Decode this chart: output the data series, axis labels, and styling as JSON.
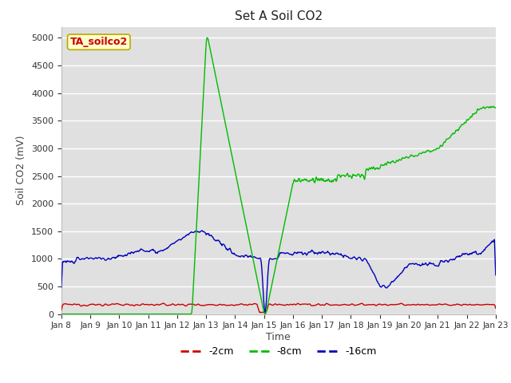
{
  "title": "Set A Soil CO2",
  "ylabel": "Soil CO2 (mV)",
  "xlabel": "Time",
  "annotation": "TA_soilco2",
  "ylim": [
    0,
    5200
  ],
  "yticks": [
    0,
    500,
    1000,
    1500,
    2000,
    2500,
    3000,
    3500,
    4000,
    4500,
    5000
  ],
  "xtick_labels": [
    "Jan 8",
    "Jan 9",
    "Jan 10",
    "Jan 11",
    "Jan 12",
    "Jan 13",
    "Jan 14",
    "Jan 15",
    "Jan 16",
    "Jan 17",
    "Jan 18",
    "Jan 19",
    "Jan 20",
    "Jan 21",
    "Jan 22",
    "Jan 23"
  ],
  "colors": {
    "red": "#cc0000",
    "green": "#00bb00",
    "blue": "#0000bb",
    "bg": "#e0e0e0",
    "annotation_bg": "#ffffcc",
    "annotation_border": "#bbaa00"
  },
  "legend_labels": [
    "-2cm",
    "-8cm",
    "-16cm"
  ],
  "line_width": 1.0,
  "n_days": 15,
  "fig_width": 6.4,
  "fig_height": 4.8,
  "dpi": 100
}
